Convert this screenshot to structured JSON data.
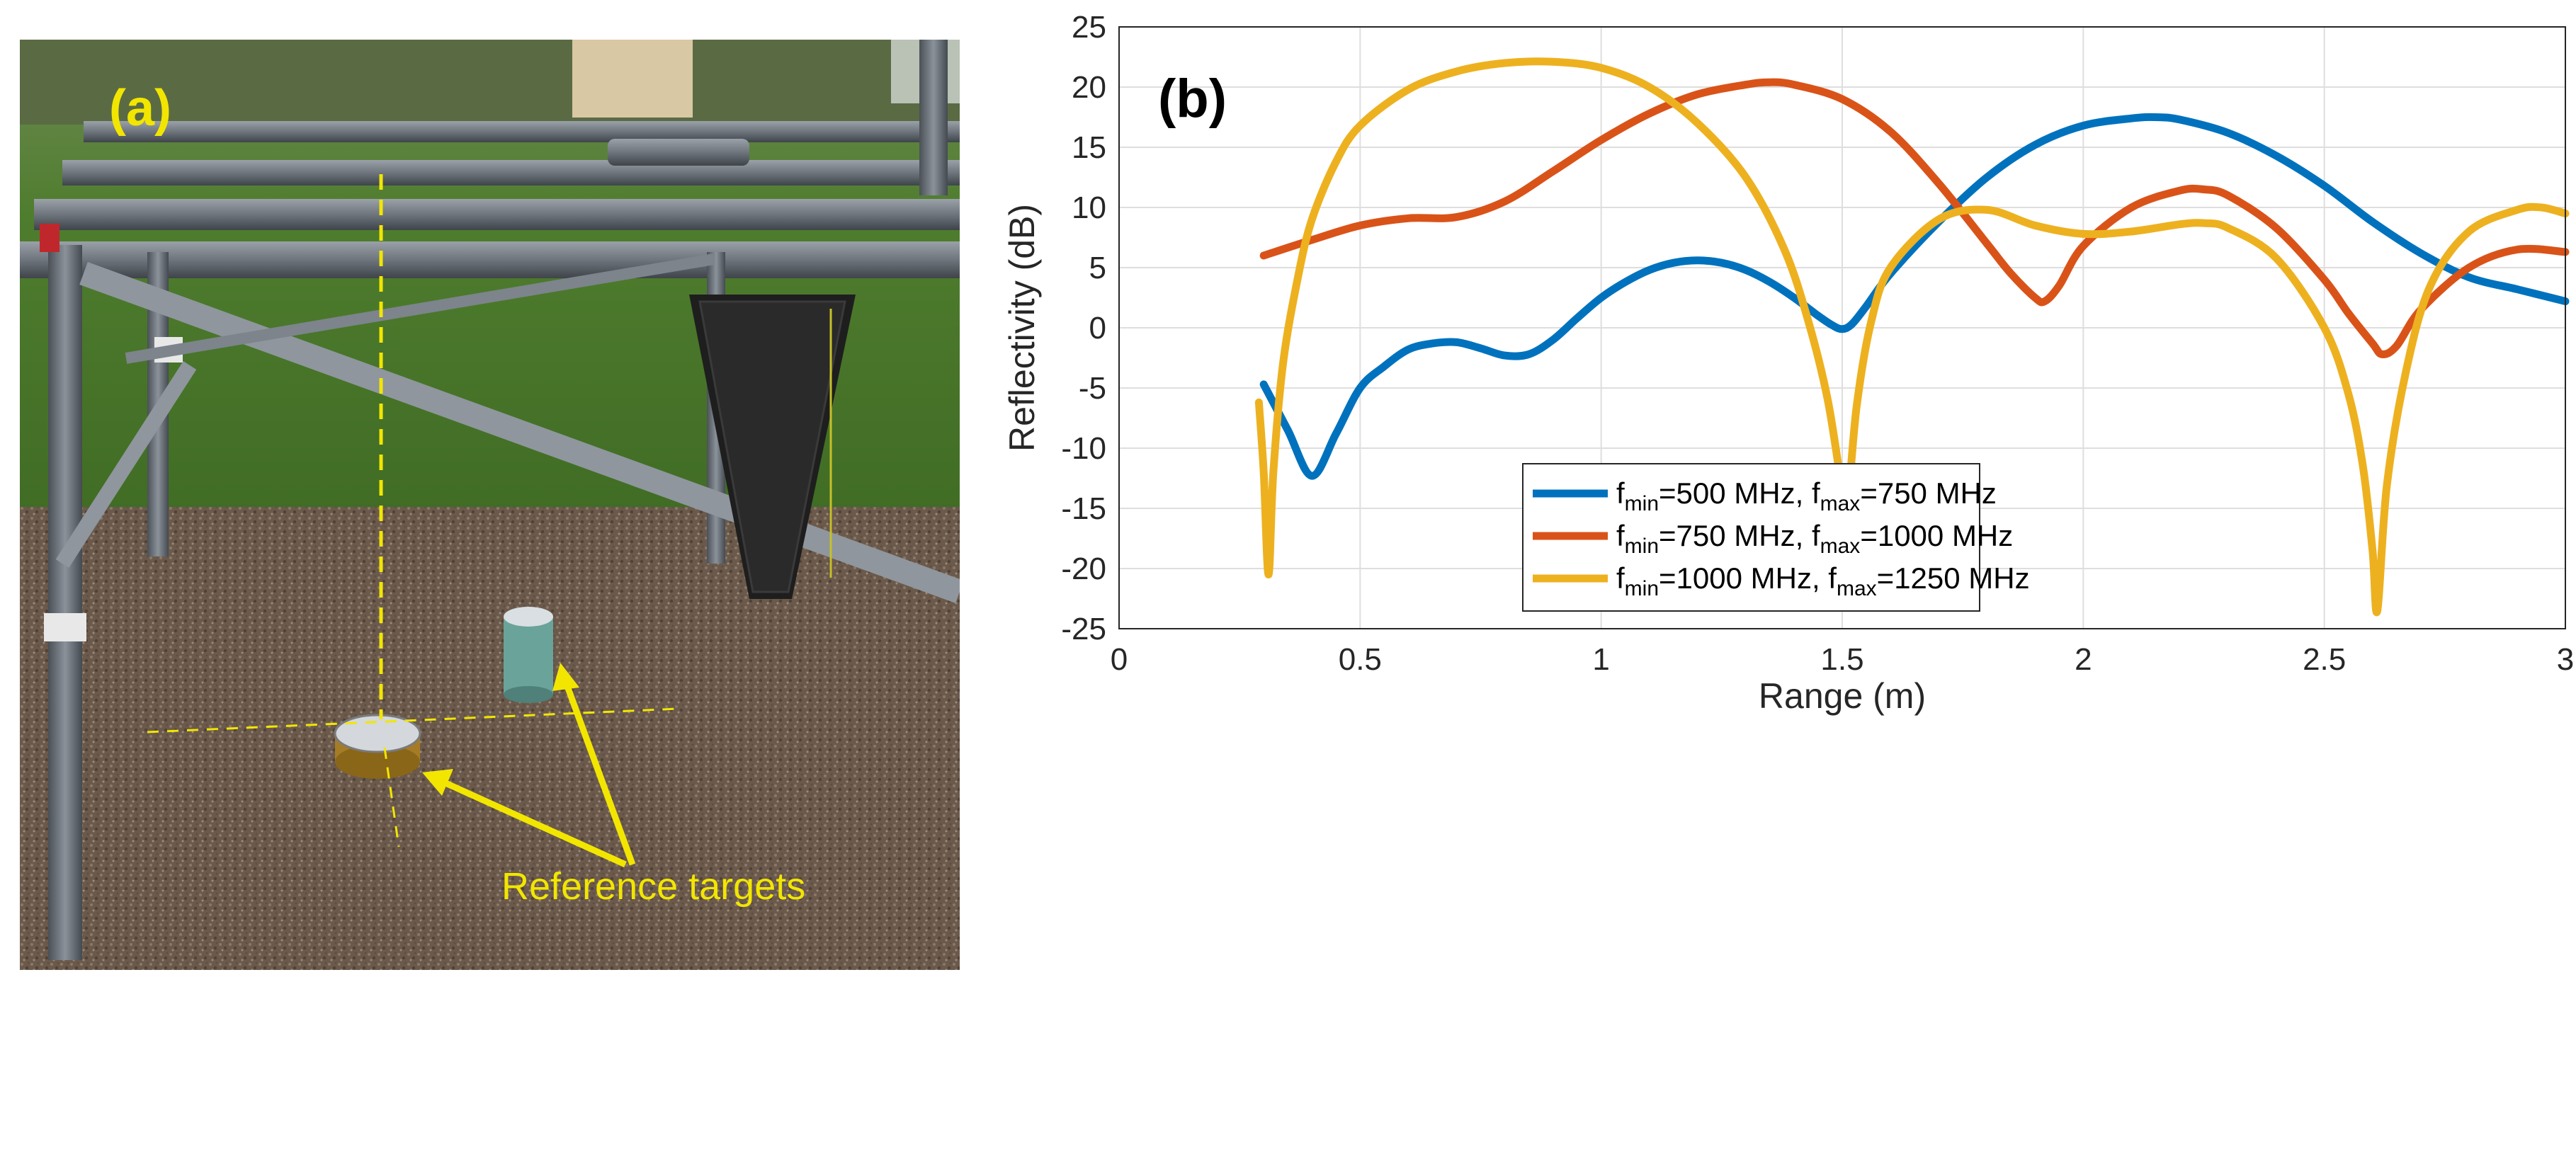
{
  "panel_a": {
    "label": "(a)",
    "annotation": "Reference targets"
  },
  "panel_b": {
    "label": "(b)"
  },
  "chart_data": {
    "type": "line",
    "title": "",
    "xlabel": "Range (m)",
    "ylabel": "Reflectivity (dB)",
    "xlim": [
      0,
      3
    ],
    "ylim": [
      -25,
      25
    ],
    "xticks": [
      0,
      0.5,
      1,
      1.5,
      2,
      2.5,
      3
    ],
    "yticks": [
      -25,
      -20,
      -15,
      -10,
      -5,
      0,
      5,
      10,
      15,
      20,
      25
    ],
    "xtick_labels": [
      "0",
      "0.5",
      "1",
      "1.5",
      "2",
      "2.5",
      "3"
    ],
    "ytick_labels": [
      "-25",
      "-20",
      "-15",
      "-10",
      "-5",
      "0",
      "5",
      "10",
      "15",
      "20",
      "25"
    ],
    "grid": true,
    "legend_position": "bottom-center",
    "series": [
      {
        "name": "f_min=500 MHz, f_max=750 MHz",
        "legend": {
          "a": "f",
          "b": "min",
          "c": "=500 MHz, f",
          "d": "max",
          "e": "=750 MHz"
        },
        "color": "#0072BD",
        "x": [
          0.3,
          0.35,
          0.4,
          0.45,
          0.5,
          0.55,
          0.6,
          0.65,
          0.7,
          0.75,
          0.8,
          0.85,
          0.9,
          0.95,
          1.0,
          1.05,
          1.1,
          1.15,
          1.2,
          1.25,
          1.3,
          1.35,
          1.4,
          1.45,
          1.48,
          1.5,
          1.52,
          1.55,
          1.6,
          1.7,
          1.8,
          1.9,
          2.0,
          2.1,
          2.15,
          2.2,
          2.3,
          2.4,
          2.5,
          2.6,
          2.7,
          2.8,
          2.9,
          3.0
        ],
        "y": [
          -4.7,
          -8.5,
          -12.3,
          -8.8,
          -5.0,
          -3.2,
          -1.8,
          -1.3,
          -1.2,
          -1.7,
          -2.3,
          -2.2,
          -1.0,
          0.8,
          2.5,
          3.8,
          4.8,
          5.4,
          5.6,
          5.4,
          4.8,
          3.8,
          2.5,
          1.0,
          0.2,
          -0.1,
          0.3,
          1.8,
          4.5,
          8.8,
          12.5,
          15.2,
          16.8,
          17.4,
          17.5,
          17.3,
          16.2,
          14.3,
          11.8,
          8.8,
          6.2,
          4.2,
          3.2,
          2.2
        ]
      },
      {
        "name": "f_min=750 MHz, f_max=1000 MHz",
        "legend": {
          "a": "f",
          "b": "min",
          "c": "=750 MHz, f",
          "d": "max",
          "e": "=1000 MHz"
        },
        "color": "#D95319",
        "x": [
          0.3,
          0.4,
          0.5,
          0.6,
          0.7,
          0.8,
          0.9,
          1.0,
          1.1,
          1.2,
          1.3,
          1.35,
          1.4,
          1.5,
          1.6,
          1.7,
          1.8,
          1.85,
          1.9,
          1.92,
          1.95,
          2.0,
          2.1,
          2.2,
          2.25,
          2.3,
          2.4,
          2.5,
          2.55,
          2.6,
          2.62,
          2.65,
          2.7,
          2.8,
          2.9,
          3.0
        ],
        "y": [
          6.0,
          7.3,
          8.5,
          9.1,
          9.2,
          10.5,
          13.0,
          15.6,
          17.8,
          19.4,
          20.2,
          20.4,
          20.2,
          19.0,
          16.3,
          12.0,
          7.0,
          4.5,
          2.5,
          2.2,
          3.5,
          6.8,
          10.0,
          11.4,
          11.5,
          11.0,
          8.3,
          4.0,
          1.2,
          -1.3,
          -2.2,
          -1.5,
          1.5,
          5.0,
          6.5,
          6.3
        ]
      },
      {
        "name": "f_min=1000 MHz, f_max=1250 MHz",
        "legend": {
          "a": "f",
          "b": "min",
          "c": "=1000 MHz, f",
          "d": "max",
          "e": "=1250 MHz"
        },
        "color": "#EDB120",
        "x": [
          0.29,
          0.3,
          0.31,
          0.32,
          0.34,
          0.37,
          0.4,
          0.45,
          0.5,
          0.6,
          0.7,
          0.8,
          0.9,
          1.0,
          1.1,
          1.2,
          1.3,
          1.38,
          1.43,
          1.47,
          1.5,
          1.51,
          1.53,
          1.56,
          1.6,
          1.7,
          1.8,
          1.9,
          2.0,
          2.1,
          2.2,
          2.25,
          2.3,
          2.4,
          2.5,
          2.55,
          2.58,
          2.6,
          2.61,
          2.63,
          2.67,
          2.72,
          2.8,
          2.9,
          2.95,
          3.0
        ],
        "y": [
          -6.2,
          -12.0,
          -20.5,
          -12.0,
          -3.0,
          4.0,
          9.0,
          13.8,
          16.8,
          19.8,
          21.3,
          22.0,
          22.1,
          21.6,
          20.0,
          17.0,
          12.5,
          6.5,
          0.5,
          -6.0,
          -13.5,
          -15.0,
          -6.5,
          0.5,
          5.0,
          9.0,
          9.8,
          8.5,
          7.8,
          8.0,
          8.6,
          8.7,
          8.3,
          5.8,
          0.0,
          -5.5,
          -11.5,
          -18.5,
          -23.5,
          -13.0,
          -3.5,
          3.5,
          8.0,
          9.8,
          10.0,
          9.5
        ]
      }
    ]
  }
}
